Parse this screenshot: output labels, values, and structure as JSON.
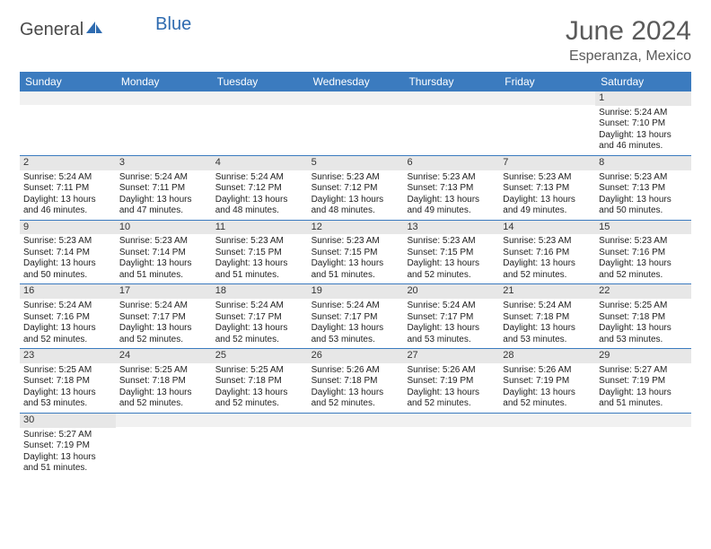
{
  "colors": {
    "header_bg": "#3b7bbf",
    "header_text": "#ffffff",
    "date_band": "#e7e7e7",
    "row_divider": "#3b7bbf",
    "title_color": "#5a5a5a",
    "logo_blue": "#2e6bb0",
    "body_text": "#222222",
    "background": "#ffffff"
  },
  "fonts": {
    "title_size_pt": 30,
    "location_size_pt": 16,
    "dayhead_size_pt": 12,
    "cell_size_pt": 10,
    "date_size_pt": 11
  },
  "logo": {
    "word1": "General",
    "word2": "Blue"
  },
  "title": "June 2024",
  "location": "Esperanza, Mexico",
  "day_headers": [
    "Sunday",
    "Monday",
    "Tuesday",
    "Wednesday",
    "Thursday",
    "Friday",
    "Saturday"
  ],
  "weeks": [
    [
      {
        "date": "",
        "sunrise": "",
        "sunset": "",
        "daylight1": "",
        "daylight2": ""
      },
      {
        "date": "",
        "sunrise": "",
        "sunset": "",
        "daylight1": "",
        "daylight2": ""
      },
      {
        "date": "",
        "sunrise": "",
        "sunset": "",
        "daylight1": "",
        "daylight2": ""
      },
      {
        "date": "",
        "sunrise": "",
        "sunset": "",
        "daylight1": "",
        "daylight2": ""
      },
      {
        "date": "",
        "sunrise": "",
        "sunset": "",
        "daylight1": "",
        "daylight2": ""
      },
      {
        "date": "",
        "sunrise": "",
        "sunset": "",
        "daylight1": "",
        "daylight2": ""
      },
      {
        "date": "1",
        "sunrise": "Sunrise: 5:24 AM",
        "sunset": "Sunset: 7:10 PM",
        "daylight1": "Daylight: 13 hours",
        "daylight2": "and 46 minutes."
      }
    ],
    [
      {
        "date": "2",
        "sunrise": "Sunrise: 5:24 AM",
        "sunset": "Sunset: 7:11 PM",
        "daylight1": "Daylight: 13 hours",
        "daylight2": "and 46 minutes."
      },
      {
        "date": "3",
        "sunrise": "Sunrise: 5:24 AM",
        "sunset": "Sunset: 7:11 PM",
        "daylight1": "Daylight: 13 hours",
        "daylight2": "and 47 minutes."
      },
      {
        "date": "4",
        "sunrise": "Sunrise: 5:24 AM",
        "sunset": "Sunset: 7:12 PM",
        "daylight1": "Daylight: 13 hours",
        "daylight2": "and 48 minutes."
      },
      {
        "date": "5",
        "sunrise": "Sunrise: 5:23 AM",
        "sunset": "Sunset: 7:12 PM",
        "daylight1": "Daylight: 13 hours",
        "daylight2": "and 48 minutes."
      },
      {
        "date": "6",
        "sunrise": "Sunrise: 5:23 AM",
        "sunset": "Sunset: 7:13 PM",
        "daylight1": "Daylight: 13 hours",
        "daylight2": "and 49 minutes."
      },
      {
        "date": "7",
        "sunrise": "Sunrise: 5:23 AM",
        "sunset": "Sunset: 7:13 PM",
        "daylight1": "Daylight: 13 hours",
        "daylight2": "and 49 minutes."
      },
      {
        "date": "8",
        "sunrise": "Sunrise: 5:23 AM",
        "sunset": "Sunset: 7:13 PM",
        "daylight1": "Daylight: 13 hours",
        "daylight2": "and 50 minutes."
      }
    ],
    [
      {
        "date": "9",
        "sunrise": "Sunrise: 5:23 AM",
        "sunset": "Sunset: 7:14 PM",
        "daylight1": "Daylight: 13 hours",
        "daylight2": "and 50 minutes."
      },
      {
        "date": "10",
        "sunrise": "Sunrise: 5:23 AM",
        "sunset": "Sunset: 7:14 PM",
        "daylight1": "Daylight: 13 hours",
        "daylight2": "and 51 minutes."
      },
      {
        "date": "11",
        "sunrise": "Sunrise: 5:23 AM",
        "sunset": "Sunset: 7:15 PM",
        "daylight1": "Daylight: 13 hours",
        "daylight2": "and 51 minutes."
      },
      {
        "date": "12",
        "sunrise": "Sunrise: 5:23 AM",
        "sunset": "Sunset: 7:15 PM",
        "daylight1": "Daylight: 13 hours",
        "daylight2": "and 51 minutes."
      },
      {
        "date": "13",
        "sunrise": "Sunrise: 5:23 AM",
        "sunset": "Sunset: 7:15 PM",
        "daylight1": "Daylight: 13 hours",
        "daylight2": "and 52 minutes."
      },
      {
        "date": "14",
        "sunrise": "Sunrise: 5:23 AM",
        "sunset": "Sunset: 7:16 PM",
        "daylight1": "Daylight: 13 hours",
        "daylight2": "and 52 minutes."
      },
      {
        "date": "15",
        "sunrise": "Sunrise: 5:23 AM",
        "sunset": "Sunset: 7:16 PM",
        "daylight1": "Daylight: 13 hours",
        "daylight2": "and 52 minutes."
      }
    ],
    [
      {
        "date": "16",
        "sunrise": "Sunrise: 5:24 AM",
        "sunset": "Sunset: 7:16 PM",
        "daylight1": "Daylight: 13 hours",
        "daylight2": "and 52 minutes."
      },
      {
        "date": "17",
        "sunrise": "Sunrise: 5:24 AM",
        "sunset": "Sunset: 7:17 PM",
        "daylight1": "Daylight: 13 hours",
        "daylight2": "and 52 minutes."
      },
      {
        "date": "18",
        "sunrise": "Sunrise: 5:24 AM",
        "sunset": "Sunset: 7:17 PM",
        "daylight1": "Daylight: 13 hours",
        "daylight2": "and 52 minutes."
      },
      {
        "date": "19",
        "sunrise": "Sunrise: 5:24 AM",
        "sunset": "Sunset: 7:17 PM",
        "daylight1": "Daylight: 13 hours",
        "daylight2": "and 53 minutes."
      },
      {
        "date": "20",
        "sunrise": "Sunrise: 5:24 AM",
        "sunset": "Sunset: 7:17 PM",
        "daylight1": "Daylight: 13 hours",
        "daylight2": "and 53 minutes."
      },
      {
        "date": "21",
        "sunrise": "Sunrise: 5:24 AM",
        "sunset": "Sunset: 7:18 PM",
        "daylight1": "Daylight: 13 hours",
        "daylight2": "and 53 minutes."
      },
      {
        "date": "22",
        "sunrise": "Sunrise: 5:25 AM",
        "sunset": "Sunset: 7:18 PM",
        "daylight1": "Daylight: 13 hours",
        "daylight2": "and 53 minutes."
      }
    ],
    [
      {
        "date": "23",
        "sunrise": "Sunrise: 5:25 AM",
        "sunset": "Sunset: 7:18 PM",
        "daylight1": "Daylight: 13 hours",
        "daylight2": "and 53 minutes."
      },
      {
        "date": "24",
        "sunrise": "Sunrise: 5:25 AM",
        "sunset": "Sunset: 7:18 PM",
        "daylight1": "Daylight: 13 hours",
        "daylight2": "and 52 minutes."
      },
      {
        "date": "25",
        "sunrise": "Sunrise: 5:25 AM",
        "sunset": "Sunset: 7:18 PM",
        "daylight1": "Daylight: 13 hours",
        "daylight2": "and 52 minutes."
      },
      {
        "date": "26",
        "sunrise": "Sunrise: 5:26 AM",
        "sunset": "Sunset: 7:18 PM",
        "daylight1": "Daylight: 13 hours",
        "daylight2": "and 52 minutes."
      },
      {
        "date": "27",
        "sunrise": "Sunrise: 5:26 AM",
        "sunset": "Sunset: 7:19 PM",
        "daylight1": "Daylight: 13 hours",
        "daylight2": "and 52 minutes."
      },
      {
        "date": "28",
        "sunrise": "Sunrise: 5:26 AM",
        "sunset": "Sunset: 7:19 PM",
        "daylight1": "Daylight: 13 hours",
        "daylight2": "and 52 minutes."
      },
      {
        "date": "29",
        "sunrise": "Sunrise: 5:27 AM",
        "sunset": "Sunset: 7:19 PM",
        "daylight1": "Daylight: 13 hours",
        "daylight2": "and 51 minutes."
      }
    ],
    [
      {
        "date": "30",
        "sunrise": "Sunrise: 5:27 AM",
        "sunset": "Sunset: 7:19 PM",
        "daylight1": "Daylight: 13 hours",
        "daylight2": "and 51 minutes."
      },
      {
        "date": "",
        "sunrise": "",
        "sunset": "",
        "daylight1": "",
        "daylight2": ""
      },
      {
        "date": "",
        "sunrise": "",
        "sunset": "",
        "daylight1": "",
        "daylight2": ""
      },
      {
        "date": "",
        "sunrise": "",
        "sunset": "",
        "daylight1": "",
        "daylight2": ""
      },
      {
        "date": "",
        "sunrise": "",
        "sunset": "",
        "daylight1": "",
        "daylight2": ""
      },
      {
        "date": "",
        "sunrise": "",
        "sunset": "",
        "daylight1": "",
        "daylight2": ""
      },
      {
        "date": "",
        "sunrise": "",
        "sunset": "",
        "daylight1": "",
        "daylight2": ""
      }
    ]
  ]
}
